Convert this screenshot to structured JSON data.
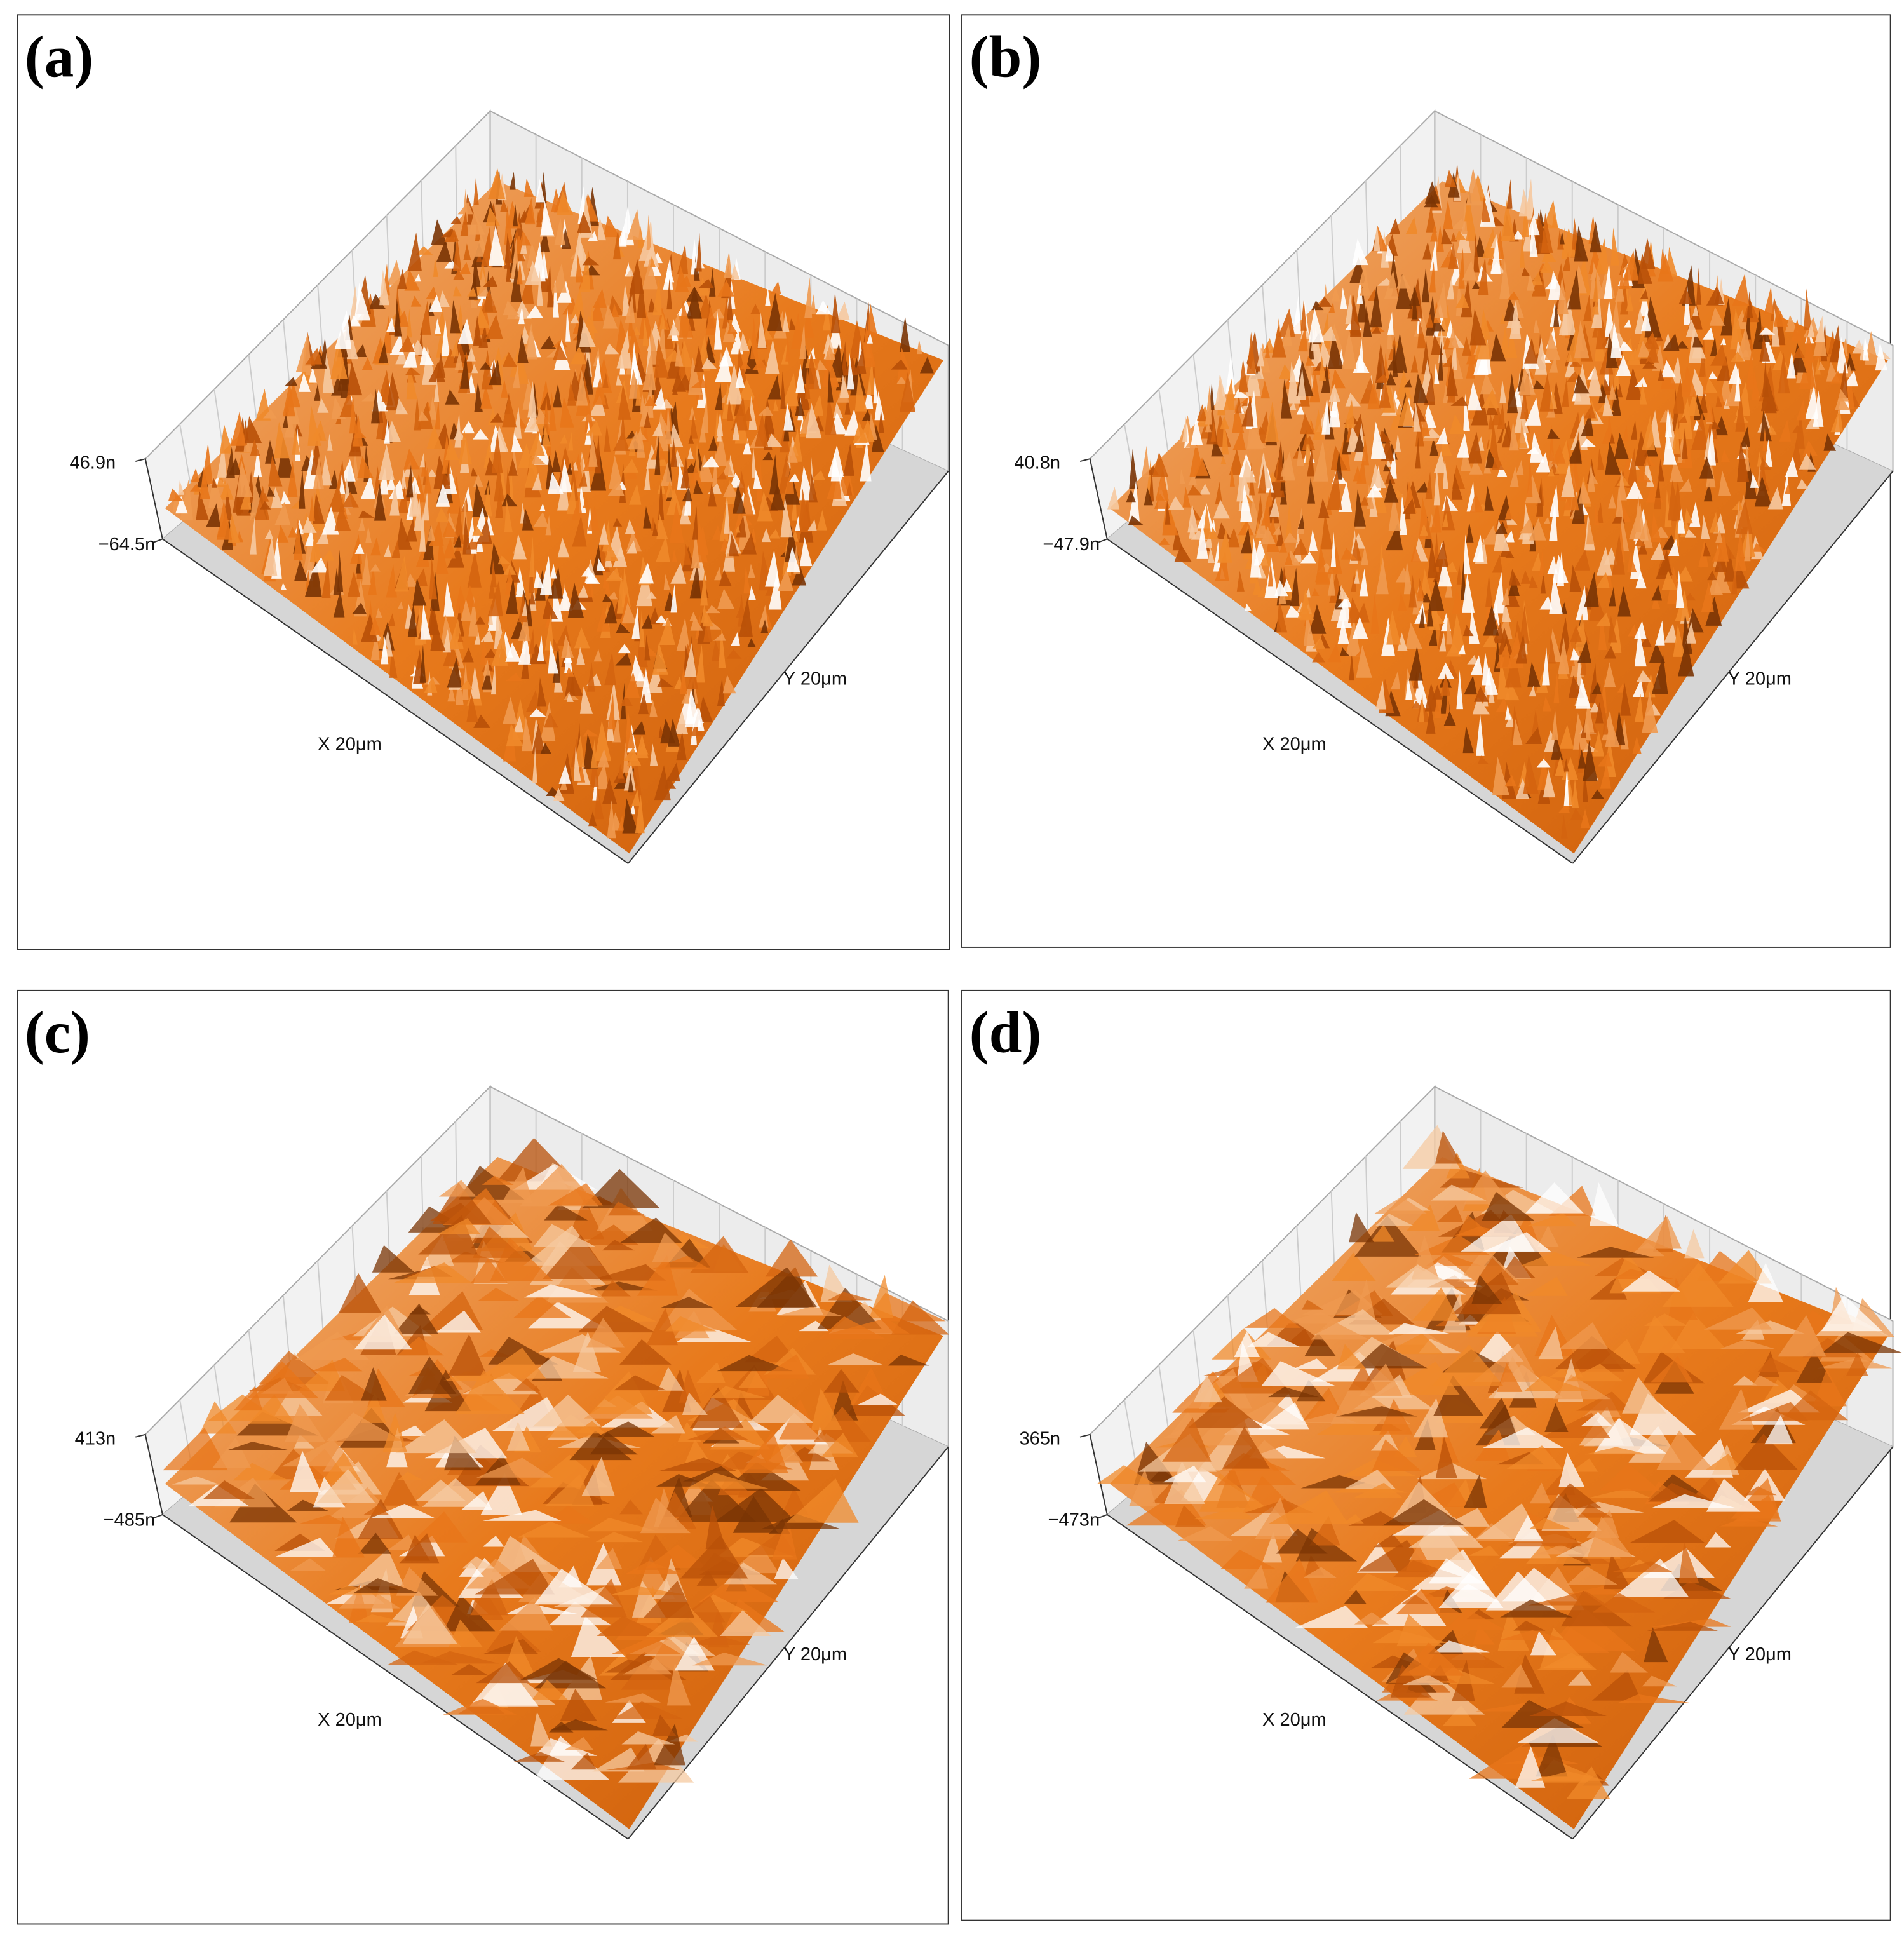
{
  "panels": [
    {
      "label": "(a)",
      "z_max": "46.9n",
      "z_min": "−64.5n",
      "x_label": "X  20μm",
      "y_label": "Y  20μm"
    },
    {
      "label": "(b)",
      "z_max": "40.8n",
      "z_min": "−47.9n",
      "x_label": "X  20μm",
      "y_label": "Y  20μm"
    },
    {
      "label": "(c)",
      "z_max": "413n",
      "z_min": "−485n",
      "x_label": "X  20μm",
      "y_label": "Y  20μm"
    },
    {
      "label": "(d)",
      "z_max": "365n",
      "z_min": "−473n",
      "x_label": "X  20μm",
      "y_label": "Y  20μm"
    }
  ]
}
